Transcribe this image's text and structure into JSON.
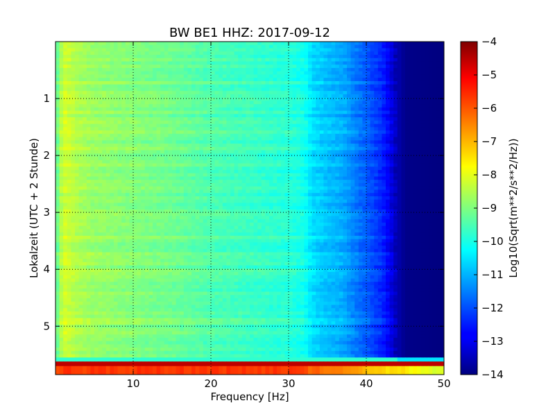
{
  "chart_data": {
    "type": "heatmap",
    "title": "BW BE1 HHZ: 2017-09-12",
    "xlabel": "Frequency [Hz]",
    "ylabel": "Lokalzeit (UTC + 2 Stunde)",
    "xlim": [
      0,
      50
    ],
    "ylim": [
      5.85,
      0
    ],
    "y_inverted": true,
    "x_ticks": [
      10,
      20,
      30,
      40,
      50
    ],
    "x_tick_labels": [
      "10",
      "20",
      "30",
      "40",
      "50"
    ],
    "y_ticks": [
      1,
      2,
      3,
      4,
      5
    ],
    "y_tick_labels": [
      "1",
      "2",
      "3",
      "4",
      "5"
    ],
    "grid": true,
    "colormap": "jet",
    "colorbar": {
      "label": "Log10(Sqrt(m**2/s**2/Hz))",
      "range": [
        -14,
        -4
      ],
      "ticks": [
        -4,
        -5,
        -6,
        -7,
        -8,
        -9,
        -10,
        -11,
        -12,
        -13,
        -14
      ],
      "tick_labels": [
        "−4",
        "−5",
        "−6",
        "−7",
        "−8",
        "−9",
        "−10",
        "−11",
        "−12",
        "−13",
        "−14"
      ]
    },
    "spectrum_profile": {
      "frequency_hz": [
        0,
        1,
        3,
        5,
        10,
        15,
        20,
        25,
        30,
        32,
        33,
        35,
        37,
        38,
        40,
        42,
        43,
        44,
        45,
        50
      ],
      "log_amplitude": [
        -9.4,
        -8.1,
        -8.5,
        -8.7,
        -8.9,
        -9.1,
        -9.4,
        -9.6,
        -9.8,
        -10.0,
        -10.5,
        -10.8,
        -11.0,
        -11.3,
        -11.8,
        -12.3,
        -12.8,
        -13.5,
        -13.9,
        -14.0
      ]
    },
    "bands": [
      {
        "time_start": 5.55,
        "time_end": 5.62,
        "log_amplitude": -9.8
      },
      {
        "time_start": 5.62,
        "time_end": 5.7,
        "log_amplitude": -4.6
      },
      {
        "time_start": 5.7,
        "time_end": 5.85,
        "log_amplitude": -5.8
      }
    ]
  }
}
